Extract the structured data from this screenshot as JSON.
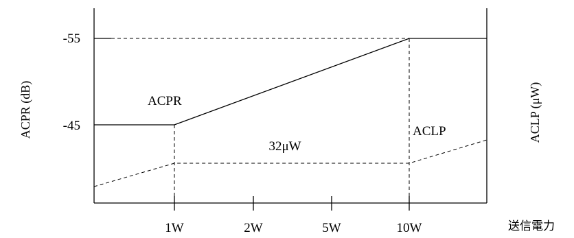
{
  "labels": {
    "left_axis": "ACPR (dB)",
    "right_axis": "ACLP (μW)",
    "x_axis": "送信電力",
    "acpr_curve": "ACPR",
    "aclp_curve": "ACLP",
    "plateau": "32μW"
  },
  "y_ticks": [
    "-55",
    "-45"
  ],
  "x_ticks": [
    "1W",
    "2W",
    "5W",
    "10W"
  ]
}
